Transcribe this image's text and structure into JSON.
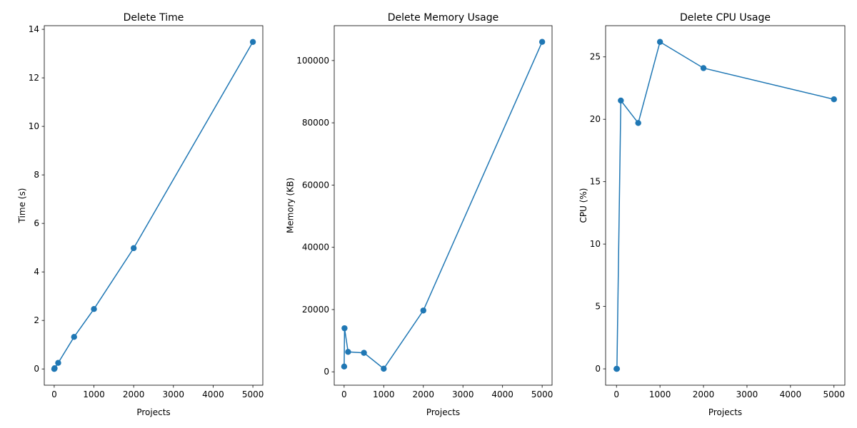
{
  "chart_data": [
    {
      "type": "line",
      "title": "Delete Time",
      "xlabel": "Projects",
      "ylabel": "Time (s)",
      "xlim": [
        -250,
        5250
      ],
      "ylim": [
        -0.67,
        14.15
      ],
      "xticks": [
        0,
        1000,
        2000,
        3000,
        4000,
        5000
      ],
      "yticks": [
        0,
        2,
        4,
        6,
        8,
        10,
        12,
        14
      ],
      "color": "#1f77b4",
      "series": [
        {
          "x": [
            1,
            10,
            100,
            500,
            1000,
            2000,
            5000
          ],
          "y": [
            0.0,
            0.03,
            0.25,
            1.32,
            2.47,
            4.98,
            13.48
          ]
        }
      ]
    },
    {
      "type": "line",
      "title": "Delete Memory Usage",
      "xlabel": "Projects",
      "ylabel": "Memory (KB)",
      "xlim": [
        -250,
        5250
      ],
      "ylim": [
        -4300,
        111200
      ],
      "xticks": [
        0,
        1000,
        2000,
        3000,
        4000,
        5000
      ],
      "yticks": [
        0,
        20000,
        40000,
        60000,
        80000,
        100000
      ],
      "color": "#1f77b4",
      "series": [
        {
          "x": [
            1,
            10,
            100,
            500,
            1000,
            2000,
            5000
          ],
          "y": [
            1700,
            14000,
            6400,
            6100,
            1000,
            19700,
            106000
          ]
        }
      ]
    },
    {
      "type": "line",
      "title": "Delete CPU Usage",
      "xlabel": "Projects",
      "ylabel": "CPU (%)",
      "xlim": [
        -250,
        5250
      ],
      "ylim": [
        -1.31,
        27.5
      ],
      "xticks": [
        0,
        1000,
        2000,
        3000,
        4000,
        5000
      ],
      "yticks": [
        0,
        5,
        10,
        15,
        20,
        25
      ],
      "color": "#1f77b4",
      "series": [
        {
          "x": [
            1,
            10,
            100,
            500,
            1000,
            2000,
            5000
          ],
          "y": [
            0.0,
            0.0,
            21.5,
            19.7,
            26.2,
            24.1,
            21.6
          ]
        }
      ]
    }
  ]
}
